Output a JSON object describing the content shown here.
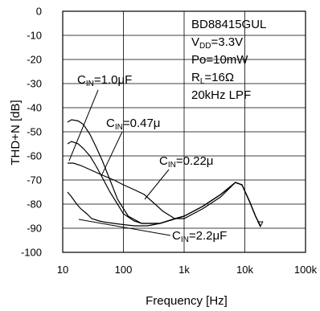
{
  "chart_data": {
    "type": "line",
    "title": "",
    "xlabel": "Frequency [Hz]",
    "ylabel": "THD+N [dB]",
    "xscale": "log",
    "xlim": [
      10,
      100000
    ],
    "ylim": [
      -100,
      0
    ],
    "grid": true,
    "x_ticks": [
      10,
      100,
      1000,
      10000,
      100000
    ],
    "x_tick_labels": [
      "10",
      "100",
      "1k",
      "10k",
      "100k"
    ],
    "y_ticks": [
      0,
      -10,
      -20,
      -30,
      -40,
      -50,
      -60,
      -70,
      -80,
      -90,
      -100
    ],
    "y_tick_labels": [
      "0",
      "-10",
      "-20",
      "-30",
      "-40",
      "-50",
      "-60",
      "-70",
      "-80",
      "-90",
      "-100"
    ],
    "info_lines": [
      {
        "main": "BD88415GUL",
        "sub": "",
        "tail": ""
      },
      {
        "main": "V",
        "sub": "DD",
        "tail": "=3.3V"
      },
      {
        "main": "Po=10mW",
        "sub": "",
        "tail": ""
      },
      {
        "main": "R",
        "sub": "L",
        "tail": "=16Ω"
      },
      {
        "main": "20kHz LPF",
        "sub": "",
        "tail": ""
      }
    ],
    "series": [
      {
        "label_main": "C",
        "label_sub": "IN",
        "label_tail": "=1.0μF",
        "x": [
          12,
          14,
          18,
          22,
          28,
          35,
          45,
          60,
          80,
          120,
          200,
          400,
          1000,
          2000,
          4000,
          7000,
          9000,
          12000,
          15000,
          18000
        ],
        "y": [
          -46,
          -45,
          -45.5,
          -47,
          -51,
          -56,
          -62,
          -70,
          -78,
          -85,
          -88,
          -88,
          -85,
          -81,
          -76,
          -71,
          -72,
          -79,
          -85,
          -89
        ]
      },
      {
        "label_main": "C",
        "label_sub": "IN",
        "label_tail": "=0.47μ",
        "x": [
          12,
          14,
          18,
          22,
          28,
          35,
          45,
          60,
          80,
          100,
          150,
          200,
          400,
          1000,
          2000,
          4000,
          7000,
          9000,
          12000,
          15000,
          18000
        ],
        "y": [
          -55,
          -54,
          -55,
          -57,
          -60,
          -64,
          -69,
          -75,
          -80,
          -84,
          -87,
          -88,
          -88,
          -85,
          -81,
          -76,
          -71,
          -72,
          -79,
          -85,
          -89
        ]
      },
      {
        "label_main": "C",
        "label_sub": "IN",
        "label_tail": "=0.22μ",
        "x": [
          12,
          15,
          20,
          30,
          45,
          70,
          100,
          150,
          220,
          300,
          450,
          700,
          1000,
          2000,
          4000,
          7000,
          9000,
          12000,
          15000,
          18000
        ],
        "y": [
          -63,
          -63,
          -64,
          -66,
          -68,
          -70,
          -72,
          -74,
          -76,
          -79,
          -83,
          -86,
          -86,
          -82,
          -77,
          -71,
          -72,
          -79,
          -85,
          -89
        ]
      },
      {
        "label_main": "C",
        "label_sub": "IN",
        "label_tail": "=2.2μF",
        "x": [
          12,
          14,
          17,
          20,
          25,
          30,
          40,
          50,
          70,
          100,
          150,
          250,
          400,
          700,
          1000,
          2000,
          4000,
          7000,
          9000,
          12000,
          15000,
          18000
        ],
        "y": [
          -75,
          -77,
          -80,
          -82,
          -84,
          -86,
          -87,
          -87.5,
          -88,
          -88.5,
          -89,
          -89,
          -88,
          -86,
          -85,
          -81,
          -76,
          -71,
          -72,
          -79,
          -85,
          -89
        ]
      }
    ]
  }
}
